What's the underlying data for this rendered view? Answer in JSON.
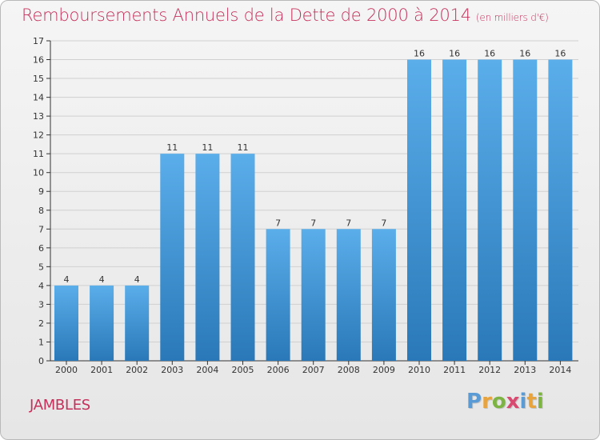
{
  "title": "Remboursements Annuels de la Dette de 2000 à 2014",
  "unit_label": "(en milliers d'€)",
  "commune": "JAMBLES",
  "brand": {
    "text": "Proxiti",
    "letters": [
      {
        "ch": "P",
        "color": "#5b9bd5"
      },
      {
        "ch": "r",
        "color": "#e8a33d"
      },
      {
        "ch": "o",
        "color": "#7cb342"
      },
      {
        "ch": "x",
        "color": "#d84a70"
      },
      {
        "ch": "i",
        "color": "#5b9bd5"
      },
      {
        "ch": "t",
        "color": "#e8a33d"
      },
      {
        "ch": "i",
        "color": "#7cb342"
      }
    ]
  },
  "colors": {
    "title": "#c5305b",
    "bar_top": "#5aaeea",
    "bar_bottom": "#2a78b8",
    "grid": "#d0d0d0",
    "axis": "#333333"
  },
  "chart_data": {
    "type": "bar",
    "title": "Remboursements Annuels de la Dette de 2000 à 2014",
    "xlabel": "",
    "ylabel": "en milliers d'€",
    "categories": [
      "2000",
      "2001",
      "2002",
      "2003",
      "2004",
      "2005",
      "2006",
      "2007",
      "2008",
      "2009",
      "2010",
      "2011",
      "2012",
      "2013",
      "2014"
    ],
    "values": [
      4,
      4,
      4,
      11,
      11,
      11,
      7,
      7,
      7,
      7,
      16,
      16,
      16,
      16,
      16
    ],
    "ylim": [
      0,
      17
    ],
    "yticks": [
      0,
      1,
      2,
      3,
      4,
      5,
      6,
      7,
      8,
      9,
      10,
      11,
      12,
      13,
      14,
      15,
      16,
      17
    ],
    "grid": true,
    "data_labels": true
  }
}
